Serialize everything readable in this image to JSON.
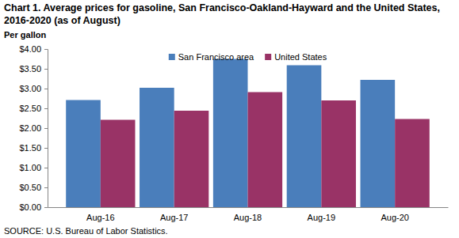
{
  "chart_data": {
    "type": "bar",
    "title": "Chart 1. Average prices for gasoline, San Francisco-Oakland-Hayward and the United States, 2016-2020  (as of August)",
    "y_label": "Per gallon",
    "source": "SOURCE: U.S. Bureau of Labor Statistics.",
    "categories": [
      "Aug-16",
      "Aug-17",
      "Aug-18",
      "Aug-19",
      "Aug-20"
    ],
    "series": [
      {
        "name": "San Francisco area",
        "color": "#4a7ebb",
        "values": [
          2.71,
          3.02,
          3.75,
          3.59,
          3.22
        ]
      },
      {
        "name": "United States",
        "color": "#993366",
        "values": [
          2.21,
          2.44,
          2.91,
          2.7,
          2.23
        ]
      }
    ],
    "ylim": [
      0,
      4
    ],
    "yticks": [
      {
        "value": 0,
        "label": "$0.00"
      },
      {
        "value": 0.5,
        "label": "$0.50"
      },
      {
        "value": 1,
        "label": "$1.00"
      },
      {
        "value": 1.5,
        "label": "$1.50"
      },
      {
        "value": 2,
        "label": "$2.00"
      },
      {
        "value": 2.5,
        "label": "$2.50"
      },
      {
        "value": 3,
        "label": "$3.00"
      },
      {
        "value": 3.5,
        "label": "$3.50"
      },
      {
        "value": 4,
        "label": "$4.00"
      }
    ],
    "grid": false,
    "legend": "top"
  }
}
